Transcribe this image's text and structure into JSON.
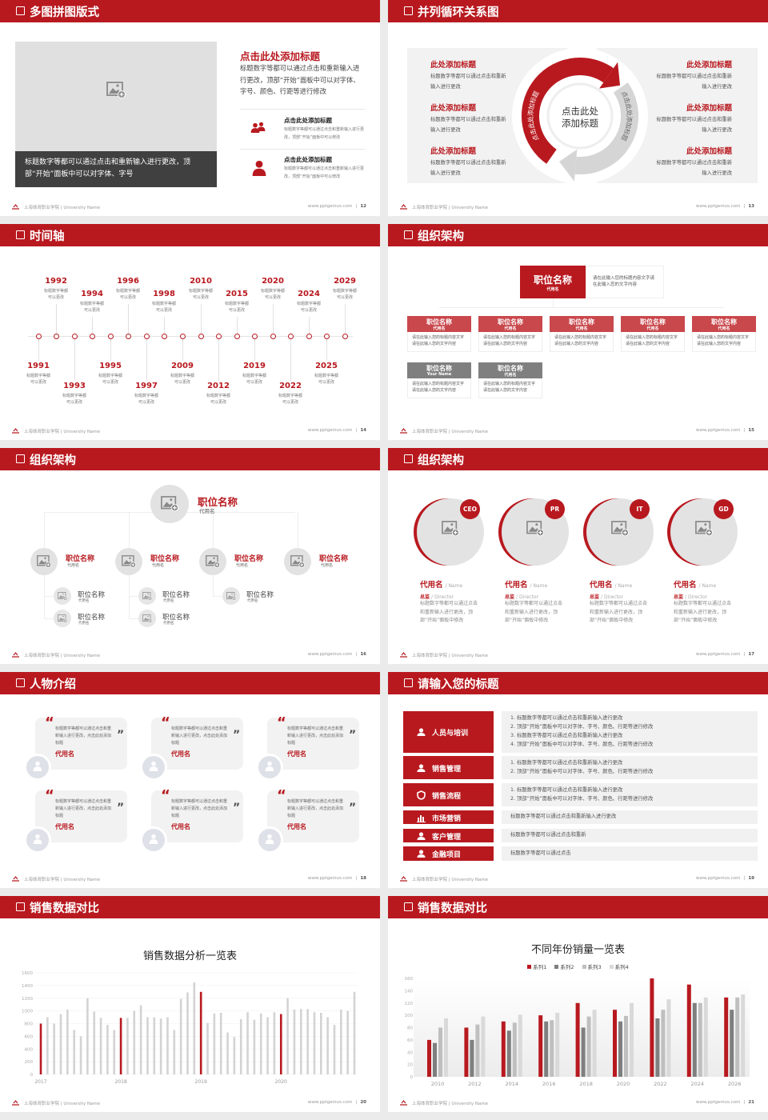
{
  "colors": {
    "accent": "#b8191f",
    "dark_gray": "#7f7f7f",
    "mid_gray": "#bfbfbf",
    "light_gray": "#d9d9d9",
    "panel": "#f2f2f2"
  },
  "footer": {
    "school": "上海体育职业学院 | University Name",
    "site": "www.pptgenius.com",
    "separator": "|"
  },
  "slides": [
    {
      "title": "多图拼图版式",
      "page": "12",
      "image_caption": "标题数字等都可以通过点击和重新输入进行更改，顶部“开始”面板中可以对字体、字号",
      "heading": "点击此处添加标题",
      "paragraph": "标题数字等都可以通过点击和重新输入进行更改，顶部“开始”面板中可以对字体、字号、颜色、行距等进行修改",
      "items": [
        {
          "icon": "users-icon",
          "title": "点击此处添加标题",
          "desc": "标题数字等都可以通过点击和重新输入进行更改，顶部“开始”面板中可以修改"
        },
        {
          "icon": "user-icon",
          "title": "点击此处添加标题",
          "desc": "标题数字等都可以通过点击和重新输入进行更改，顶部“开始”面板中可以修改"
        }
      ]
    },
    {
      "title": "并列循环关系图",
      "page": "13",
      "center_text": [
        "点击此处",
        "添加标题"
      ],
      "arc_left_label": "点击此处添加标题",
      "arc_right_label": "点击此处添加标题",
      "items_left": [
        {
          "title": "此处添加标题",
          "desc": "标题数字等都可以通过点击和重新输入进行更改"
        },
        {
          "title": "此处添加标题",
          "desc": "标题数字等都可以通过点击和重新输入进行更改"
        },
        {
          "title": "此处添加标题",
          "desc": "标题数字等都可以通过点击和重新输入进行更改"
        }
      ],
      "items_right": [
        {
          "title": "此处添加标题",
          "desc": "标题数字等都可以通过点击和重新输入进行更改"
        },
        {
          "title": "此处添加标题",
          "desc": "标题数字等都可以通过点击和重新输入进行更改"
        },
        {
          "title": "此处添加标题",
          "desc": "标题数字等都可以通过点击和重新输入进行更改"
        }
      ]
    },
    {
      "title": "时间轴",
      "page": "14",
      "events": [
        {
          "year": "1991",
          "desc": "标题数字等都可以更改"
        },
        {
          "year": "1992",
          "desc": "标题数字等都可以更改"
        },
        {
          "year": "1993",
          "desc": "标题数字等都可以更改"
        },
        {
          "year": "1994",
          "desc": "标题数字等都可以更改"
        },
        {
          "year": "1995",
          "desc": "标题数字等都可以更改"
        },
        {
          "year": "1996",
          "desc": "标题数字等都可以更改"
        },
        {
          "year": "1997",
          "desc": "标题数字等都可以更改"
        },
        {
          "year": "1998",
          "desc": "标题数字等都可以更改"
        },
        {
          "year": "2009",
          "desc": "标题数字等都可以更改"
        },
        {
          "year": "2010",
          "desc": "标题数字等都可以更改"
        },
        {
          "year": "2012",
          "desc": "标题数字等都可以更改"
        },
        {
          "year": "2015",
          "desc": "标题数字等都可以更改"
        },
        {
          "year": "2019",
          "desc": "标题数字等都可以更改"
        },
        {
          "year": "2020",
          "desc": "标题数字等都可以更改"
        },
        {
          "year": "2022",
          "desc": "标题数字等都可以更改"
        },
        {
          "year": "2024",
          "desc": "标题数字等都可以更改"
        },
        {
          "year": "2025",
          "desc": "标题数字等都可以更改"
        },
        {
          "year": "2029",
          "desc": "标题数字等都可以更改"
        }
      ]
    },
    {
      "title": "组织架构",
      "page": "15",
      "top": {
        "title": "职位名称",
        "sub": "代用名",
        "desc": "请在此输入您的标题内容文字请在此输入您的文字内容"
      },
      "boxes": [
        {
          "title": "职位名称",
          "sub": "代用名",
          "desc": "请在此输入您的标题内容文字请在此输入您的文字内容",
          "tone": "red"
        },
        {
          "title": "职位名称",
          "sub": "代用名",
          "desc": "请在此输入您的标题内容文字请在此输入您的文字内容",
          "tone": "red"
        },
        {
          "title": "职位名称",
          "sub": "代用名",
          "desc": "请在此输入您的标题内容文字请在此输入您的文字内容",
          "tone": "red"
        },
        {
          "title": "职位名称",
          "sub": "代用名",
          "desc": "请在此输入您的标题内容文字请在此输入您的文字内容",
          "tone": "red"
        },
        {
          "title": "职位名称",
          "sub": "代用名",
          "desc": "请在此输入您的标题内容文字请在此输入您的文字内容",
          "tone": "red"
        },
        {
          "title": "职位名称",
          "sub": "Your Name",
          "desc": "请在此输入您的标题内容文字请在此输入您的文字内容",
          "tone": "gray"
        },
        {
          "title": "职位名称",
          "sub": "代用名",
          "desc": "请在此输入您的标题内容文字请在此输入您的文字内容",
          "tone": "gray"
        }
      ]
    },
    {
      "title": "组织架构",
      "page": "16",
      "top": {
        "title": "职位名称",
        "sub": "代用名"
      },
      "branches": [
        {
          "title": "职位名称",
          "sub": "代用名",
          "children": [
            {
              "title": "职位名称",
              "sub": "代用名"
            },
            {
              "title": "职位名称",
              "sub": "代用名"
            }
          ]
        },
        {
          "title": "职位名称",
          "sub": "代用名",
          "children": [
            {
              "title": "职位名称",
              "sub": "代用名"
            },
            {
              "title": "职位名称",
              "sub": "代用名"
            }
          ]
        },
        {
          "title": "职位名称",
          "sub": "代用名",
          "children": [
            {
              "title": "职位名称",
              "sub": "代用名"
            }
          ]
        },
        {
          "title": "职位名称",
          "sub": "代用名",
          "children": []
        }
      ]
    },
    {
      "title": "组织架构",
      "page": "17",
      "members": [
        {
          "badge": "CEO",
          "name": "代用名",
          "name_en": "/ Name",
          "role": "总监",
          "role_en": "/  Director",
          "desc": "标题数字等都可以通过点击和重新输入进行更改，顶部“开始”面板中修改"
        },
        {
          "badge": "PR",
          "name": "代用名",
          "name_en": "/ Name",
          "role": "总监",
          "role_en": "/  Director",
          "desc": "标题数字等都可以通过点击和重新输入进行更改，顶部“开始”面板中修改"
        },
        {
          "badge": "IT",
          "name": "代用名",
          "name_en": "/ Name",
          "role": "总监",
          "role_en": "/  Director",
          "desc": "标题数字等都可以通过点击和重新输入进行更改，顶部“开始”面板中修改"
        },
        {
          "badge": "GD",
          "name": "代用名",
          "name_en": "/ Name",
          "role": "总监",
          "role_en": "/  Director",
          "desc": "标题数字等都可以通过点击和重新输入进行更改，顶部“开始”面板中修改"
        }
      ]
    },
    {
      "title": "人物介绍",
      "page": "18",
      "quotes": [
        {
          "text": "标题数字等都可以通过点击和重新输入进行更改，点击此处添加标题",
          "name": "代用名"
        },
        {
          "text": "标题数字等都可以通过点击和重新输入进行更改，点击此处添加标题",
          "name": "代用名"
        },
        {
          "text": "标题数字等都可以通过点击和重新输入进行更改，点击此处添加标题",
          "name": "代用名"
        },
        {
          "text": "标题数字等都可以通过点击和重新输入进行更改，点击此处添加标题",
          "name": "代用名"
        },
        {
          "text": "标题数字等都可以通过点击和重新输入进行更改，点击此处添加标题",
          "name": "代用名"
        },
        {
          "text": "标题数字等都可以通过点击和重新输入进行更改，点击此处添加标题",
          "name": "代用名"
        }
      ],
      "open_quote": "“",
      "close_quote": "”"
    },
    {
      "title": "请输入您的标题",
      "page": "19",
      "rows": [
        {
          "icon": "training-icon",
          "label": "人员与培训",
          "lines": [
            "1.   标题数字等都可以通过点击和重新输入进行更改",
            "2.   顶部“开始”面板中可以对字体、字号、颜色、行距等进行修改",
            "3.   标题数字等都可以通过点击和重新输入进行更改",
            "4.   顶部“开始”面板中可以对字体、字号、颜色、行距等进行修改"
          ]
        },
        {
          "icon": "sales-management-icon",
          "label": "销售管理",
          "lines": [
            "1.   标题数字等都可以通过点击和重新输入进行更改",
            "2.   顶部“开始”面板中可以对字体、字号、颜色、行距等进行修改"
          ]
        },
        {
          "icon": "shield-icon",
          "label": "销售流程",
          "lines": [
            "1.   标题数字等都可以通过点击和重新输入进行更改",
            "2.   顶部“开始”面板中可以对字体、字号、颜色、行距等进行修改"
          ]
        },
        {
          "icon": "bar-chart-icon",
          "label": "市场营销",
          "lines": [
            "标题数字等都可以通过点击和重新输入进行更改"
          ]
        },
        {
          "icon": "customers-icon",
          "label": "客户管理",
          "lines": [
            "标题数字等都可以通过点击和重新"
          ]
        },
        {
          "icon": "finance-icon",
          "label": "金融项目",
          "lines": [
            "标题数字等都可以通过点击"
          ]
        }
      ]
    },
    {
      "title": "销售数据对比",
      "page": "20",
      "chart": 0
    },
    {
      "title": "销售数据对比",
      "page": "21",
      "chart": 1
    }
  ],
  "chart_data": [
    {
      "type": "bar",
      "title": "销售数据分析一览表",
      "xlabel": "",
      "ylabel": "",
      "ylim": [
        0,
        1600
      ],
      "yticks": [
        0,
        200,
        400,
        600,
        800,
        1000,
        1200,
        1400,
        1600
      ],
      "grid": true,
      "legend": "none",
      "x_tick_labels": [
        "2017",
        "2018",
        "2019",
        "2020"
      ],
      "highlight": "first month of each year in red, others gray",
      "values": [
        800,
        900,
        800,
        950,
        1020,
        700,
        600,
        1200,
        990,
        890,
        780,
        700,
        890,
        890,
        1000,
        1090,
        900,
        900,
        880,
        900,
        700,
        1190,
        1290,
        1450,
        1300,
        810,
        960,
        970,
        660,
        590,
        870,
        980,
        860,
        960,
        900,
        980,
        950,
        1200,
        1020,
        1030,
        1030,
        980,
        970,
        900,
        780,
        1020,
        1000,
        1300
      ]
    },
    {
      "type": "bar",
      "title": "不同年份销量一览表",
      "xlabel": "",
      "ylabel": "",
      "ylim": [
        0,
        160
      ],
      "yticks": [
        0,
        20,
        40,
        60,
        80,
        100,
        120,
        140,
        160
      ],
      "grid": false,
      "legend": "top",
      "categories": [
        "2010",
        "2012",
        "2014",
        "2016",
        "2018",
        "2020",
        "2022",
        "2024",
        "2026"
      ],
      "series": [
        {
          "name": "系列1",
          "color": "#b8191f",
          "values": [
            60,
            80,
            90,
            100,
            120,
            109,
            160,
            150,
            129
          ]
        },
        {
          "name": "系列2",
          "color": "#7f7f7f",
          "values": [
            55,
            60,
            75,
            90,
            80,
            90,
            95,
            120,
            109
          ]
        },
        {
          "name": "系列3",
          "color": "#bfbfbf",
          "values": [
            80,
            85,
            88,
            92,
            98,
            99,
            109,
            120,
            129
          ]
        },
        {
          "name": "系列4",
          "color": "#d9d9d9",
          "values": [
            95,
            98,
            101,
            104,
            109,
            120,
            126,
            129,
            134
          ]
        }
      ]
    }
  ]
}
